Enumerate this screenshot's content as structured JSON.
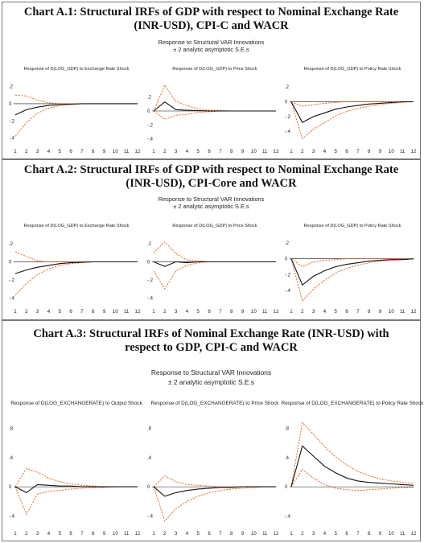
{
  "chart_data": [
    {
      "type": "line",
      "chart_title": [
        "Chart A.1: Structural IRFs of GDP with respect to Nominal Exchange Rate",
        "(INR-USD), CPI-C and WACR"
      ],
      "subtitle": [
        "Response to Structural VAR Innovations",
        "± 2 analytic asymptotic S.E.s"
      ],
      "panels": [
        {
          "title": "Response of D(LOG_GDP) to Exchange Rate Shock",
          "x": [
            1,
            2,
            3,
            4,
            5,
            6,
            7,
            8,
            9,
            10,
            11,
            12
          ],
          "ylim": [
            -0.45,
            0.28
          ],
          "yticks": [
            ".2",
            "0",
            "-.2",
            "-.4"
          ],
          "ytick_values": [
            0.2,
            0,
            -0.2,
            -0.4
          ],
          "series": [
            {
              "values": [
                -0.13,
                -0.07,
                -0.04,
                -0.02,
                -0.01,
                -0.005,
                0,
                0,
                0,
                0,
                0,
                0
              ]
            },
            {
              "values": [
                0.1,
                0.09,
                0.04,
                0.01,
                0,
                0,
                0,
                0,
                0,
                0,
                0,
                0
              ]
            },
            {
              "values": [
                -0.38,
                -0.22,
                -0.11,
                -0.05,
                -0.02,
                -0.01,
                0,
                0,
                0,
                0,
                0,
                0
              ]
            }
          ]
        },
        {
          "title": "Response of D(LOG_GDP) to Price Shock",
          "x": [
            1,
            2,
            3,
            4,
            5,
            6,
            7,
            8,
            9,
            10,
            11,
            12
          ],
          "ylim": [
            -0.45,
            0.45
          ],
          "yticks": [
            ".2",
            "0",
            "-.2",
            "-.4"
          ],
          "ytick_values": [
            0.2,
            0,
            -0.2,
            -0.4
          ],
          "series": [
            {
              "values": [
                0,
                0.13,
                0.02,
                0.01,
                0.005,
                0,
                0,
                0,
                0,
                0,
                0,
                0
              ]
            },
            {
              "values": [
                0,
                0.37,
                0.14,
                0.08,
                0.03,
                0.01,
                0.01,
                0,
                0,
                0,
                0,
                0
              ]
            },
            {
              "values": [
                0,
                -0.12,
                -0.06,
                -0.05,
                -0.02,
                -0.01,
                0,
                0,
                0,
                0,
                0,
                0
              ]
            }
          ]
        },
        {
          "title": "Response of D(LOG_GDP) to Policy Rate Shock",
          "x": [
            1,
            2,
            3,
            4,
            5,
            6,
            7,
            8,
            9,
            10,
            11,
            12
          ],
          "ylim": [
            -0.55,
            0.3
          ],
          "yticks": [
            ".2",
            "0",
            "-.2",
            "-.4"
          ],
          "ytick_values": [
            0.2,
            0,
            -0.2,
            -0.4
          ],
          "series": [
            {
              "values": [
                0,
                -0.28,
                -0.2,
                -0.15,
                -0.1,
                -0.07,
                -0.05,
                -0.03,
                -0.02,
                -0.01,
                0,
                0
              ]
            },
            {
              "values": [
                0,
                -0.06,
                -0.04,
                -0.02,
                -0.01,
                0,
                0,
                0,
                0,
                0,
                0,
                0
              ]
            },
            {
              "values": [
                0,
                -0.5,
                -0.37,
                -0.28,
                -0.19,
                -0.13,
                -0.09,
                -0.06,
                -0.04,
                -0.02,
                -0.01,
                0
              ]
            }
          ]
        }
      ],
      "xtick_labels": [
        "1",
        "2",
        "3",
        "4",
        "5",
        "6",
        "7",
        "8",
        "9",
        "10",
        "11",
        "12"
      ]
    },
    {
      "type": "line",
      "chart_title": [
        "Chart A.2: Structural IRFs of GDP with respect to Nominal Exchange Rate",
        "(INR-USD), CPI-Core and WACR"
      ],
      "subtitle": [
        "Response to Structural VAR Innovations",
        "± 2 analytic asymptotic S.E.s"
      ],
      "panels": [
        {
          "title": "Response of D(LOG_GDP) to Exchange Rate Shock",
          "x": [
            1,
            2,
            3,
            4,
            5,
            6,
            7,
            8,
            9,
            10,
            11,
            12
          ],
          "ylim": [
            -0.45,
            0.28
          ],
          "yticks": [
            ".2",
            "0",
            "-.2",
            "-.4"
          ],
          "ytick_values": [
            0.2,
            0,
            -0.2,
            -0.4
          ],
          "series": [
            {
              "values": [
                -0.13,
                -0.09,
                -0.06,
                -0.04,
                -0.02,
                -0.01,
                -0.005,
                0,
                0,
                0,
                0,
                0
              ]
            },
            {
              "values": [
                0.11,
                0.06,
                0.01,
                0,
                0,
                0,
                0,
                0,
                0,
                0,
                0,
                0
              ]
            },
            {
              "values": [
                -0.37,
                -0.24,
                -0.14,
                -0.08,
                -0.04,
                -0.02,
                -0.01,
                0,
                0,
                0,
                0,
                0
              ]
            }
          ]
        },
        {
          "title": "Response of D(LOG_GDP) to Price Shock",
          "x": [
            1,
            2,
            3,
            4,
            5,
            6,
            7,
            8,
            9,
            10,
            11,
            12
          ],
          "ylim": [
            -0.45,
            0.28
          ],
          "yticks": [
            ".2",
            "0",
            "-.2",
            "-.4"
          ],
          "ytick_values": [
            0.2,
            0,
            -0.2,
            -0.4
          ],
          "series": [
            {
              "values": [
                0,
                -0.05,
                0,
                -0.01,
                0,
                0,
                0,
                0,
                0,
                0,
                0,
                0
              ]
            },
            {
              "values": [
                0.1,
                0.22,
                0.09,
                0.02,
                0.01,
                0,
                0,
                0,
                0,
                0,
                0,
                0
              ]
            },
            {
              "values": [
                -0.1,
                -0.3,
                -0.1,
                -0.04,
                -0.01,
                0,
                0,
                0,
                0,
                0,
                0,
                0
              ]
            }
          ]
        },
        {
          "title": "Response of D(LOG_GDP) to Policy Rate Shock",
          "x": [
            1,
            2,
            3,
            4,
            5,
            6,
            7,
            8,
            9,
            10,
            11,
            12
          ],
          "ylim": [
            -0.55,
            0.28
          ],
          "yticks": [
            ".2",
            "0",
            "-.2",
            "-.4"
          ],
          "ytick_values": [
            0.2,
            0,
            -0.2,
            -0.4
          ],
          "series": [
            {
              "values": [
                0,
                -0.33,
                -0.22,
                -0.15,
                -0.1,
                -0.07,
                -0.05,
                -0.03,
                -0.02,
                -0.01,
                -0.01,
                0
              ]
            },
            {
              "values": [
                0,
                -0.1,
                -0.04,
                -0.02,
                -0.01,
                0,
                0,
                0,
                0,
                0,
                0,
                0
              ]
            },
            {
              "values": [
                0,
                -0.53,
                -0.38,
                -0.27,
                -0.18,
                -0.12,
                -0.08,
                -0.05,
                -0.03,
                -0.02,
                -0.01,
                0
              ]
            }
          ]
        }
      ],
      "xtick_labels": [
        "1",
        "2",
        "3",
        "4",
        "5",
        "6",
        "7",
        "8",
        "9",
        "10",
        "11",
        "12"
      ]
    },
    {
      "type": "line",
      "chart_title": [
        "Chart A.3: Structural IRFs of Nominal Exchange Rate (INR-USD) with",
        "respect to GDP, CPI-C and WACR"
      ],
      "subtitle": [
        "Response to Structural VAR Innovations",
        "± 2 analytic asymptotic S.E.s"
      ],
      "panels": [
        {
          "title": "Response of D(LOG_EXCHANGERATE) to Output Shock",
          "x": [
            1,
            2,
            3,
            4,
            5,
            6,
            7,
            8,
            9,
            10,
            11,
            12
          ],
          "ylim": [
            -0.55,
            0.95
          ],
          "yticks": [
            ".8",
            ".4",
            "0",
            "-.4"
          ],
          "ytick_values": [
            0.8,
            0.4,
            0,
            -0.4
          ],
          "series": [
            {
              "values": [
                0,
                -0.08,
                0.03,
                0.02,
                0.01,
                0.01,
                0,
                0,
                0,
                0,
                0,
                0
              ]
            },
            {
              "values": [
                0,
                0.25,
                0.2,
                0.12,
                0.07,
                0.04,
                0.02,
                0.01,
                0,
                0,
                0,
                0
              ]
            },
            {
              "values": [
                0,
                -0.38,
                -0.1,
                -0.06,
                -0.05,
                -0.03,
                -0.02,
                -0.01,
                -0.01,
                0,
                0,
                0
              ]
            }
          ]
        },
        {
          "title": "Response of D(LOG_EXCHANGERATE) to Price Shock",
          "x": [
            1,
            2,
            3,
            4,
            5,
            6,
            7,
            8,
            9,
            10,
            11,
            12
          ],
          "ylim": [
            -0.55,
            0.95
          ],
          "yticks": [
            ".8",
            ".4",
            "0",
            "-.4"
          ],
          "ytick_values": [
            0.8,
            0.4,
            0,
            -0.4
          ],
          "series": [
            {
              "values": [
                0,
                -0.13,
                -0.08,
                -0.05,
                -0.03,
                -0.02,
                -0.01,
                -0.01,
                0,
                0,
                0,
                0
              ]
            },
            {
              "values": [
                0,
                0.15,
                0.07,
                0.03,
                0.02,
                0.01,
                0,
                0,
                0,
                0,
                0,
                0
              ]
            },
            {
              "values": [
                0,
                -0.47,
                -0.3,
                -0.2,
                -0.13,
                -0.08,
                -0.05,
                -0.03,
                -0.02,
                -0.01,
                0,
                0
              ]
            }
          ]
        },
        {
          "title": "Response of D(LOG_EXCHANGERATE) to Policy Rate Shock",
          "x": [
            1,
            2,
            3,
            4,
            5,
            6,
            7,
            8,
            9,
            10,
            11,
            12
          ],
          "ylim": [
            -0.55,
            0.95
          ],
          "yticks": [
            ".8",
            ".4",
            "0",
            "-.4"
          ],
          "ytick_values": [
            0.8,
            0.4,
            0,
            -0.4
          ],
          "series": [
            {
              "values": [
                0,
                0.56,
                0.42,
                0.28,
                0.19,
                0.12,
                0.08,
                0.06,
                0.05,
                0.04,
                0.03,
                0.02
              ]
            },
            {
              "values": [
                0,
                0.88,
                0.72,
                0.55,
                0.41,
                0.3,
                0.21,
                0.15,
                0.11,
                0.08,
                0.06,
                0.05
              ]
            },
            {
              "values": [
                0,
                0.24,
                0.12,
                0.03,
                -0.02,
                -0.04,
                -0.05,
                -0.04,
                -0.03,
                -0.02,
                -0.01,
                -0.01
              ]
            }
          ]
        }
      ],
      "xtick_labels": [
        "1",
        "2",
        "3",
        "4",
        "5",
        "6",
        "7",
        "8",
        "9",
        "10",
        "11",
        "12"
      ]
    }
  ],
  "colors": {
    "response": "#111111",
    "band": "#e0601a",
    "zero_line": "#111111",
    "border": "#777777"
  }
}
